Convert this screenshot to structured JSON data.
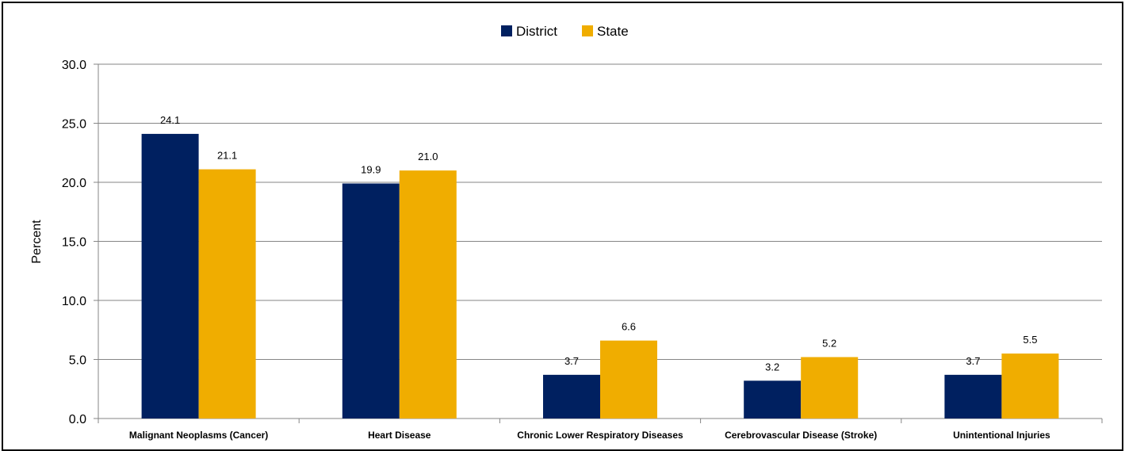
{
  "chart_data": {
    "type": "bar",
    "title": "",
    "xlabel": "",
    "ylabel": "Percent",
    "ylim": [
      0,
      30
    ],
    "yticks": [
      "0.0",
      "5.0",
      "10.0",
      "15.0",
      "20.0",
      "25.0",
      "30.0"
    ],
    "grid": true,
    "legend_position": "top-center",
    "categories": [
      "Malignant Neoplasms (Cancer)",
      "Heart Disease",
      "Chronic Lower Respiratory Diseases",
      "Cerebrovascular Disease (Stroke)",
      "Unintentional Injuries"
    ],
    "series": [
      {
        "name": "District",
        "color": "#002060",
        "values": [
          24.1,
          19.9,
          3.7,
          3.2,
          3.7
        ],
        "labels": [
          "24.1",
          "19.9",
          "3.7",
          "3.2",
          "3.7"
        ]
      },
      {
        "name": "State",
        "color": "#F0AD00",
        "values": [
          21.1,
          21.0,
          6.6,
          5.2,
          5.5
        ],
        "labels": [
          "21.1",
          "21.0",
          "6.6",
          "5.2",
          "5.5"
        ]
      }
    ]
  }
}
